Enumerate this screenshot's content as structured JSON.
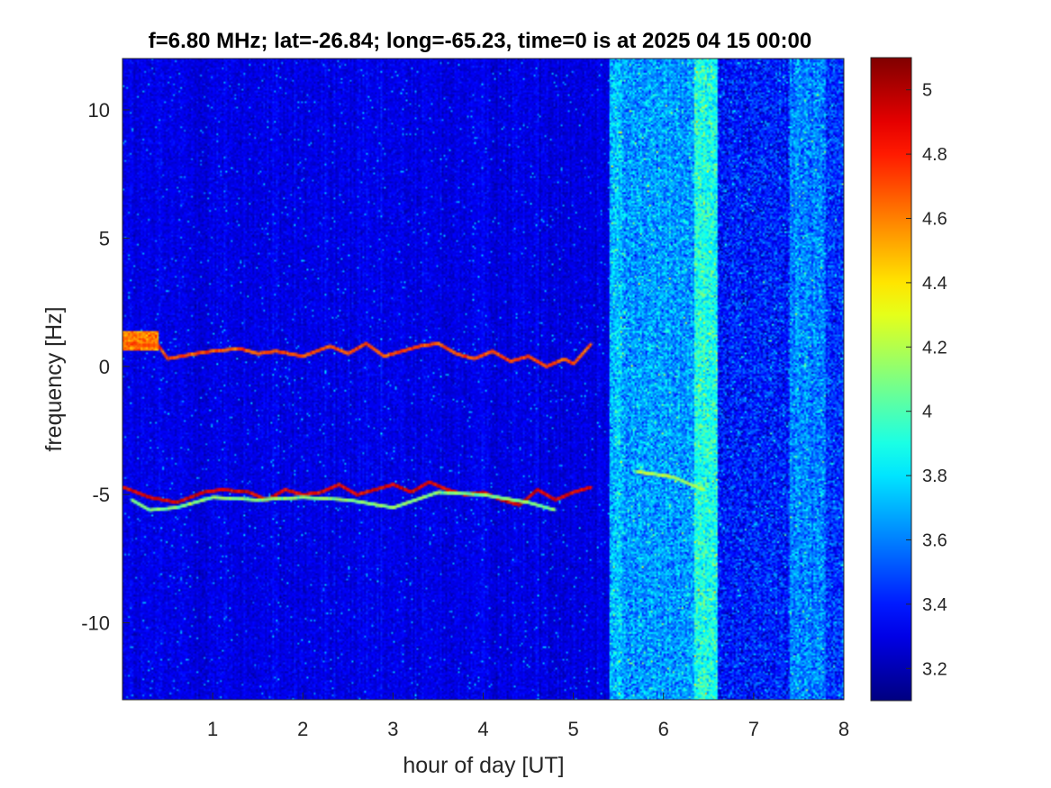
{
  "chart_data": {
    "type": "heatmap",
    "title": "f=6.80 MHz;  lat=-26.84; long=-65.23, time=0 is at 2025 04 15 00:00",
    "xlabel": "hour of day [UT]",
    "ylabel": "frequency [Hz]",
    "xlim": [
      0,
      8
    ],
    "ylim": [
      -13,
      12
    ],
    "x_ticks": [
      1,
      2,
      3,
      4,
      5,
      6,
      7,
      8
    ],
    "x_tick_labels": [
      "1",
      "2",
      "3",
      "4",
      "5",
      "6",
      "7",
      "8"
    ],
    "y_ticks": [
      10,
      5,
      0,
      -5,
      -10
    ],
    "y_tick_labels": [
      "10",
      "5",
      "0",
      "-5",
      "-10"
    ],
    "colormap": "jet",
    "clim": [
      3.1,
      5.1
    ],
    "colorbar_ticks": [
      5,
      4.8,
      4.6,
      4.4,
      4.2,
      4,
      3.8,
      3.6,
      3.4,
      3.2
    ],
    "colorbar_tick_labels": [
      "5",
      "4.8",
      "4.6",
      "4.4",
      "4.2",
      "4",
      "3.8",
      "3.6",
      "3.4",
      "3.2"
    ],
    "background_level": 3.3,
    "traces": [
      {
        "points": [
          [
            0.0,
            0.9
          ],
          [
            0.4,
            0.8
          ],
          [
            0.5,
            0.3
          ],
          [
            0.8,
            0.5
          ],
          [
            1.0,
            0.6
          ],
          [
            1.3,
            0.7
          ],
          [
            1.5,
            0.5
          ],
          [
            1.7,
            0.6
          ],
          [
            2.0,
            0.4
          ],
          [
            2.3,
            0.8
          ],
          [
            2.5,
            0.5
          ],
          [
            2.7,
            0.9
          ],
          [
            2.9,
            0.4
          ],
          [
            3.1,
            0.6
          ],
          [
            3.3,
            0.8
          ],
          [
            3.5,
            0.9
          ],
          [
            3.7,
            0.5
          ],
          [
            3.9,
            0.3
          ],
          [
            4.1,
            0.6
          ],
          [
            4.3,
            0.2
          ],
          [
            4.5,
            0.4
          ],
          [
            4.7,
            0.0
          ],
          [
            4.9,
            0.3
          ],
          [
            5.0,
            0.1
          ],
          [
            5.2,
            0.9
          ]
        ],
        "level": 4.7
      },
      {
        "points": [
          [
            0.0,
            -4.7
          ],
          [
            0.3,
            -5.1
          ],
          [
            0.6,
            -5.3
          ],
          [
            0.9,
            -4.9
          ],
          [
            1.1,
            -4.8
          ],
          [
            1.4,
            -4.9
          ],
          [
            1.6,
            -5.2
          ],
          [
            1.8,
            -4.8
          ],
          [
            2.0,
            -5.0
          ],
          [
            2.2,
            -4.9
          ],
          [
            2.4,
            -4.6
          ],
          [
            2.6,
            -5.0
          ],
          [
            2.8,
            -4.8
          ],
          [
            3.0,
            -4.6
          ],
          [
            3.2,
            -4.9
          ],
          [
            3.4,
            -4.5
          ],
          [
            3.6,
            -4.8
          ],
          [
            3.8,
            -5.0
          ],
          [
            4.0,
            -4.9
          ],
          [
            4.2,
            -5.2
          ],
          [
            4.4,
            -5.4
          ],
          [
            4.6,
            -4.8
          ],
          [
            4.8,
            -5.2
          ],
          [
            5.0,
            -4.9
          ],
          [
            5.2,
            -4.7
          ]
        ],
        "level": 4.9
      },
      {
        "points": [
          [
            0.1,
            -5.2
          ],
          [
            0.3,
            -5.6
          ],
          [
            0.6,
            -5.5
          ],
          [
            1.0,
            -5.1
          ],
          [
            1.5,
            -5.2
          ],
          [
            2.0,
            -5.1
          ],
          [
            2.5,
            -5.2
          ],
          [
            3.0,
            -5.5
          ],
          [
            3.5,
            -4.9
          ],
          [
            4.0,
            -5.0
          ],
          [
            4.5,
            -5.3
          ],
          [
            4.8,
            -5.6
          ]
        ],
        "level": 4.1
      },
      {
        "points": [
          [
            5.7,
            -4.1
          ],
          [
            5.9,
            -4.2
          ],
          [
            6.1,
            -4.3
          ],
          [
            6.3,
            -4.6
          ],
          [
            6.45,
            -4.8
          ]
        ],
        "level": 4.2
      }
    ],
    "noise_bands": [
      {
        "x": [
          5.4,
          5.55
        ],
        "level": 3.75
      },
      {
        "x": [
          5.55,
          6.55
        ],
        "level": 3.65
      },
      {
        "x": [
          6.35,
          6.6
        ],
        "level": 3.9
      },
      {
        "x": [
          6.6,
          7.4
        ],
        "level": 3.4
      },
      {
        "x": [
          7.4,
          7.8
        ],
        "level": 3.6
      },
      {
        "x": [
          7.8,
          8.0
        ],
        "level": 3.45
      }
    ],
    "hotspot": {
      "x": [
        0.0,
        0.4
      ],
      "y": [
        0.6,
        1.4
      ],
      "level": 4.6
    }
  }
}
